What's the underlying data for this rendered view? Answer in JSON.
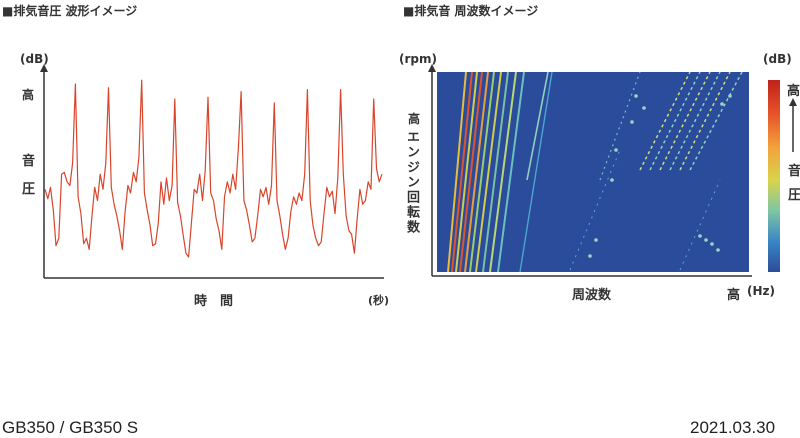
{
  "waveform": {
    "title": "■排気音圧 波形イメージ",
    "unit": "(dB)",
    "y_high": "高",
    "y_label_1": "音",
    "y_label_2": "圧",
    "x_label": "時　間",
    "x_unit": "(秒)"
  },
  "spectrum": {
    "title": "■排気音 周波数イメージ",
    "y_unit": "(rpm)",
    "y_high": "高",
    "y_label": "エンジン回転数",
    "x_label": "周波数",
    "x_high": "高",
    "x_unit": "(Hz)",
    "legend_unit": "(dB)",
    "legend_high": "高",
    "legend_label_1": "音",
    "legend_label_2": "圧",
    "bg_color": "#2b4c9a"
  },
  "footer": {
    "model": "GB350 / GB350 S",
    "date": "2021.03.30"
  },
  "chart_data": [
    {
      "type": "line",
      "title": "■排気音圧 波形イメージ",
      "xlabel": "時　間",
      "ylabel": "音圧",
      "series": [
        {
          "color": "#d9452b",
          "values": [
            44,
            39,
            45,
            33,
            14,
            18,
            52,
            53,
            48,
            46,
            58,
            100,
            40,
            31,
            15,
            18,
            12,
            30,
            45,
            38,
            52,
            44,
            58,
            98,
            45,
            36,
            30,
            22,
            12,
            32,
            46,
            42,
            53,
            48,
            61,
            102,
            42,
            33,
            25,
            14,
            15,
            26,
            48,
            36,
            50,
            38,
            46,
            92,
            37,
            30,
            20,
            10,
            8,
            26,
            44,
            42,
            52,
            38,
            54,
            93,
            42,
            38,
            28,
            22,
            12,
            40,
            48,
            42,
            52,
            44,
            66,
            96,
            38,
            33,
            25,
            16,
            18,
            30,
            44,
            40,
            45,
            36,
            46,
            90,
            38,
            30,
            20,
            12,
            18,
            32,
            40,
            36,
            42,
            38,
            52,
            97,
            38,
            25,
            18,
            14,
            16,
            31,
            45,
            40,
            43,
            31,
            50,
            97,
            52,
            30,
            22,
            20,
            10,
            28,
            44,
            36,
            38,
            48,
            44,
            92,
            55,
            48,
            52
          ]
        }
      ]
    },
    {
      "type": "heatmap",
      "title": "■排気音 周波数イメージ",
      "xlabel": "周波数",
      "ylabel": "エンジン回転数",
      "legend": "音圧 (dB)"
    }
  ]
}
